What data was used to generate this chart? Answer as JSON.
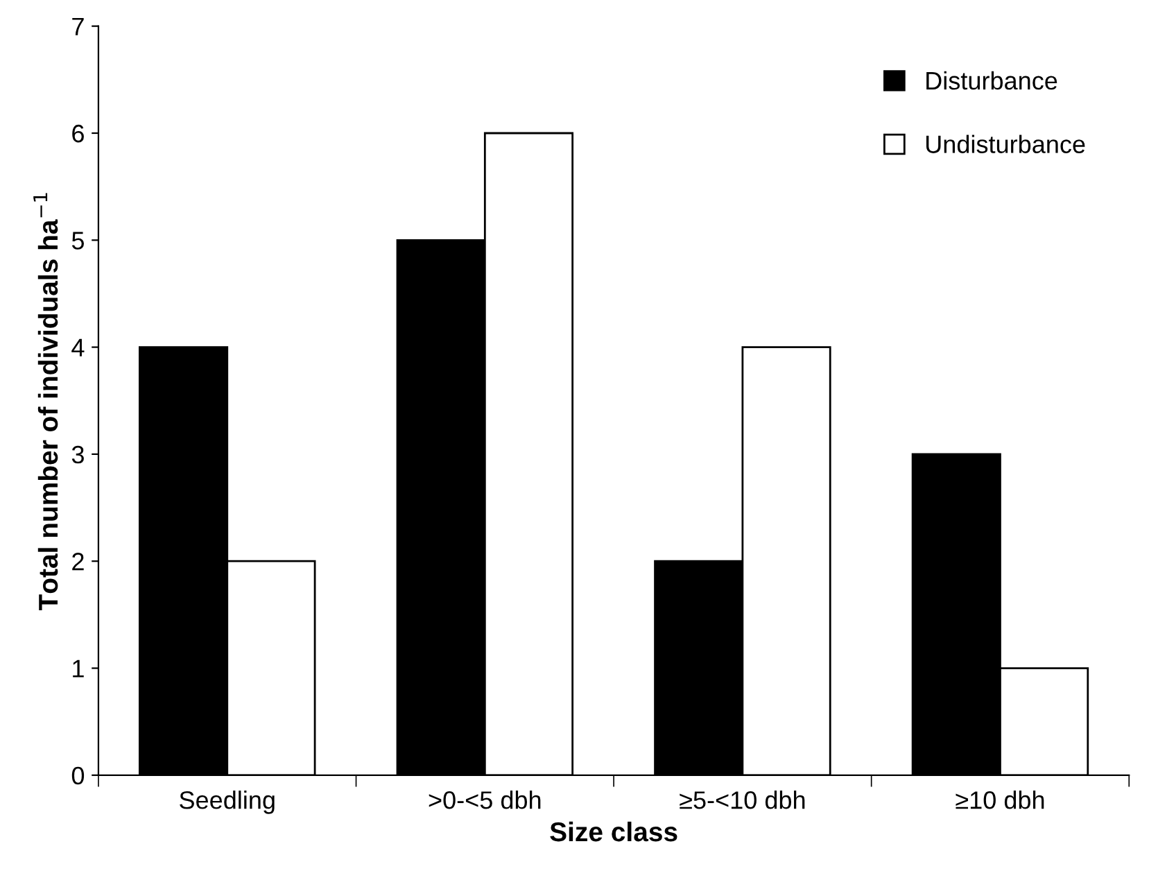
{
  "chart_data": {
    "type": "bar",
    "xlabel": "Size class",
    "ylabel": "Total number of individuals ha$^{−1}$",
    "categories": [
      "Seedling",
      ">0-<5 dbh",
      "≥5-<10 dbh",
      "≥10 dbh"
    ],
    "series": [
      {
        "name": "Disturbance",
        "color": "#000000",
        "values": [
          4,
          5,
          2,
          3
        ]
      },
      {
        "name": "Undisturbance",
        "color": "#ffffff",
        "values": [
          2,
          6,
          4,
          1
        ]
      }
    ],
    "ylim": [
      0,
      7
    ],
    "yticks": [
      0,
      1,
      2,
      3,
      4,
      5,
      6,
      7
    ],
    "grid": false,
    "legend": "top right"
  }
}
